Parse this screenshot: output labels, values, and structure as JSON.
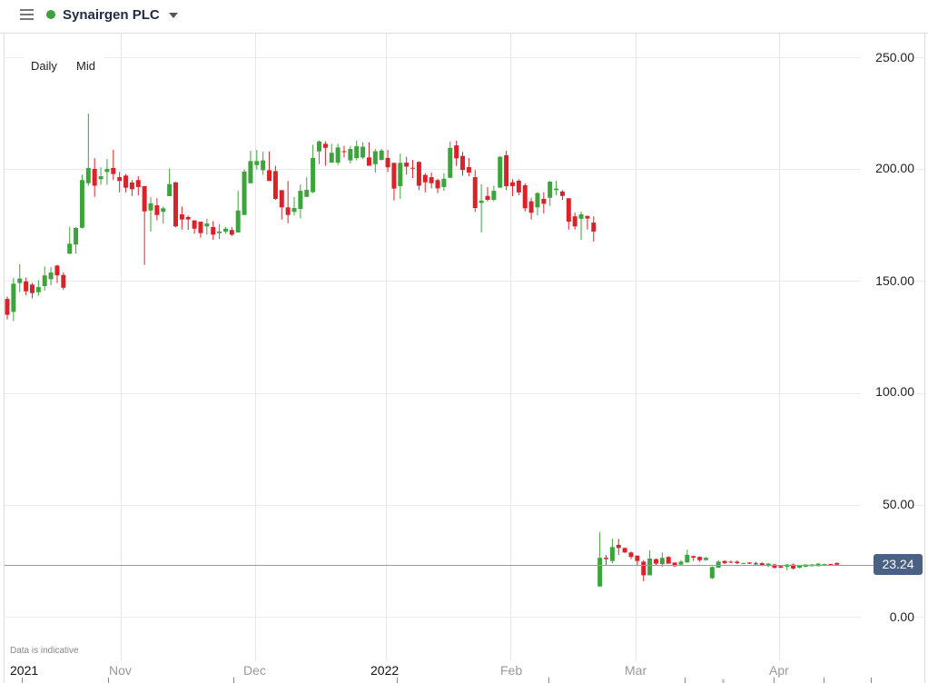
{
  "header": {
    "menu_icon": "hamburger-icon",
    "status_color": "#3da33d",
    "title": "Synairgen PLC",
    "dropdown_icon": "caret-down-icon"
  },
  "chart_controls": {
    "interval": "Daily",
    "price_type": "Mid"
  },
  "footer_note": "Data is indicative",
  "last_price": {
    "value": "23.24",
    "badge_color": "#4a6085"
  },
  "colors": {
    "up": "#3da33d",
    "down": "#d9232b",
    "neutral": "#333333"
  },
  "chart_data": {
    "type": "candlestick",
    "title": "Synairgen PLC",
    "xlabel": "",
    "ylabel": "",
    "ylim": [
      0,
      250
    ],
    "grid": true,
    "y_ticks": [
      "250.00",
      "200.00",
      "150.00",
      "100.00",
      "50.00",
      "0.00"
    ],
    "x_ticks": [
      {
        "label": "2021",
        "major": true
      },
      {
        "label": "Nov",
        "major": false
      },
      {
        "label": "Dec",
        "major": false
      },
      {
        "label": "2022",
        "major": true
      },
      {
        "label": "Feb",
        "major": false
      },
      {
        "label": "Mar",
        "major": false
      },
      {
        "label": "Apr",
        "major": false
      }
    ],
    "last_value": 23.24,
    "candle_fields": [
      "open",
      "high",
      "low",
      "close"
    ],
    "candles": [
      [
        142.0,
        143.0,
        132.8,
        134.9
      ],
      [
        136.2,
        151.4,
        132.2,
        148.8
      ],
      [
        149.1,
        157.5,
        145.0,
        151.1
      ],
      [
        149.8,
        151.5,
        143.7,
        145.4
      ],
      [
        148.4,
        149.1,
        142.3,
        144.6
      ],
      [
        145.0,
        150.4,
        143.4,
        147.3
      ],
      [
        147.7,
        156.5,
        145.7,
        152.5
      ],
      [
        150.8,
        156.2,
        148.1,
        153.8
      ],
      [
        156.9,
        157.2,
        149.1,
        152.5
      ],
      [
        152.7,
        153.8,
        146.1,
        147.0
      ],
      [
        162.2,
        174.1,
        162.0,
        166.7
      ],
      [
        166.3,
        174.1,
        162.2,
        173.7
      ],
      [
        173.8,
        197.5,
        173.4,
        195.1
      ],
      [
        193.7,
        224.8,
        192.5,
        200.5
      ],
      [
        200.1,
        204.9,
        187.6,
        192.6
      ],
      [
        195.5,
        200.8,
        193.0,
        196.8
      ],
      [
        198.7,
        204.5,
        193.0,
        200.1
      ],
      [
        200.5,
        208.6,
        195.1,
        197.8
      ],
      [
        196.4,
        198.7,
        189.6,
        194.7
      ],
      [
        197.1,
        197.8,
        189.6,
        191.7
      ],
      [
        194.0,
        195.1,
        188.0,
        191.0
      ],
      [
        195.1,
        196.8,
        188.3,
        192.0
      ],
      [
        192.4,
        192.4,
        157.2,
        181.1
      ],
      [
        181.5,
        187.4,
        172.1,
        184.7
      ],
      [
        183.8,
        187.0,
        177.1,
        179.5
      ],
      [
        180.9,
        183.3,
        175.7,
        182.5
      ],
      [
        187.9,
        200.2,
        187.9,
        193.3
      ],
      [
        194.1,
        194.3,
        174.0,
        174.4
      ],
      [
        179.8,
        183.3,
        173.0,
        177.5
      ],
      [
        178.6,
        179.3,
        172.8,
        177.5
      ],
      [
        177.1,
        177.1,
        171.1,
        173.4
      ],
      [
        176.5,
        176.5,
        169.4,
        171.4
      ],
      [
        174.4,
        177.8,
        170.7,
        175.7
      ],
      [
        174.1,
        176.8,
        168.4,
        170.7
      ],
      [
        171.4,
        175.4,
        168.7,
        172.1
      ],
      [
        172.1,
        174.1,
        171.1,
        173.4
      ],
      [
        172.8,
        174.1,
        170.0,
        170.7
      ],
      [
        171.7,
        190.3,
        171.7,
        181.5
      ],
      [
        179.5,
        199.8,
        179.5,
        198.9
      ],
      [
        193.7,
        208.2,
        193.7,
        203.6
      ],
      [
        201.8,
        208.6,
        199.8,
        203.6
      ],
      [
        199.5,
        207.7,
        197.4,
        203.9
      ],
      [
        199.5,
        207.9,
        194.7,
        194.7
      ],
      [
        199.1,
        201.4,
        186.3,
        186.7
      ],
      [
        190.6,
        190.6,
        177.5,
        182.9
      ],
      [
        182.9,
        194.7,
        175.8,
        179.5
      ],
      [
        180.9,
        187.6,
        179.3,
        182.6
      ],
      [
        182.2,
        193.1,
        178.0,
        190.3
      ],
      [
        187.6,
        196.4,
        187.6,
        190.7
      ],
      [
        189.7,
        210.9,
        189.3,
        205.0
      ],
      [
        207.9,
        212.7,
        202.2,
        212.4
      ],
      [
        211.3,
        212.4,
        201.5,
        209.5
      ],
      [
        202.9,
        211.3,
        202.9,
        207.3
      ],
      [
        202.9,
        211.3,
        201.8,
        209.7
      ],
      [
        208.0,
        210.4,
        205.2,
        207.7
      ],
      [
        203.9,
        210.4,
        202.5,
        209.0
      ],
      [
        204.9,
        212.7,
        203.9,
        210.2
      ],
      [
        205.2,
        212.0,
        204.5,
        210.0
      ],
      [
        205.2,
        212.0,
        201.5,
        201.5
      ],
      [
        202.2,
        209.0,
        198.5,
        208.0
      ],
      [
        204.1,
        209.0,
        203.9,
        208.3
      ],
      [
        205.0,
        208.6,
        198.7,
        200.8
      ],
      [
        202.8,
        202.8,
        186.0,
        191.3
      ],
      [
        192.4,
        206.9,
        186.7,
        202.8
      ],
      [
        202.9,
        205.5,
        197.5,
        201.1
      ],
      [
        200.6,
        204.1,
        196.0,
        200.2
      ],
      [
        203.2,
        203.5,
        190.6,
        192.6
      ],
      [
        197.4,
        198.2,
        189.6,
        194.1
      ],
      [
        196.4,
        198.5,
        191.4,
        193.7
      ],
      [
        195.1,
        195.7,
        189.3,
        191.4
      ],
      [
        192.0,
        198.2,
        190.3,
        195.7
      ],
      [
        196.1,
        212.4,
        196.1,
        209.5
      ],
      [
        210.6,
        212.7,
        201.4,
        204.8
      ],
      [
        205.9,
        207.7,
        197.1,
        199.6
      ],
      [
        200.9,
        204.9,
        196.8,
        198.5
      ],
      [
        196.4,
        199.6,
        180.9,
        182.6
      ],
      [
        184.9,
        193.3,
        171.7,
        185.9
      ],
      [
        188.0,
        192.0,
        185.6,
        186.3
      ],
      [
        186.3,
        192.6,
        185.6,
        190.3
      ],
      [
        191.7,
        205.9,
        191.7,
        205.5
      ],
      [
        206.2,
        208.2,
        190.6,
        192.4
      ],
      [
        194.1,
        195.5,
        187.9,
        192.4
      ],
      [
        194.8,
        195.5,
        188.3,
        189.6
      ],
      [
        192.8,
        193.7,
        181.1,
        182.5
      ],
      [
        185.6,
        187.2,
        177.5,
        180.5
      ],
      [
        182.9,
        189.7,
        179.3,
        189.3
      ],
      [
        186.7,
        189.7,
        180.2,
        184.5
      ],
      [
        187.2,
        194.7,
        183.6,
        194.4
      ],
      [
        190.6,
        194.8,
        188.3,
        191.3
      ],
      [
        190.0,
        190.6,
        186.3,
        188.0
      ],
      [
        187.0,
        187.0,
        173.0,
        176.5
      ],
      [
        178.9,
        180.6,
        173.0,
        174.4
      ],
      [
        177.8,
        181.1,
        168.4,
        179.8
      ],
      [
        179.1,
        179.1,
        173.0,
        177.9
      ],
      [
        176.1,
        178.9,
        167.6,
        172.1
      ],
      [
        13.5,
        37.7,
        13.5,
        26.3
      ],
      [
        26.3,
        27.6,
        23.0,
        25.7
      ],
      [
        24.9,
        34.8,
        23.9,
        31.1
      ],
      [
        32.1,
        34.8,
        27.6,
        30.7
      ],
      [
        30.7,
        30.9,
        28.5,
        28.7
      ],
      [
        28.7,
        29.1,
        25.7,
        26.7
      ],
      [
        27.3,
        27.3,
        22.6,
        24.9
      ],
      [
        24.6,
        25.3,
        15.8,
        18.5
      ],
      [
        18.5,
        29.7,
        18.5,
        26.0
      ],
      [
        25.7,
        26.0,
        23.0,
        23.7
      ],
      [
        23.5,
        28.7,
        22.2,
        26.3
      ],
      [
        26.7,
        27.1,
        23.7,
        23.7
      ],
      [
        24.2,
        24.2,
        22.2,
        22.6
      ],
      [
        23.3,
        25.3,
        23.0,
        24.6
      ],
      [
        24.2,
        30.0,
        24.2,
        27.6
      ],
      [
        27.1,
        27.3,
        24.9,
        26.4
      ],
      [
        26.7,
        26.9,
        24.6,
        25.3
      ],
      [
        25.3,
        26.7,
        25.0,
        26.3
      ],
      [
        17.2,
        22.6,
        16.8,
        22.2
      ],
      [
        21.9,
        25.3,
        21.9,
        24.6
      ],
      [
        24.9,
        25.3,
        23.5,
        23.9
      ],
      [
        24.6,
        25.0,
        23.9,
        24.2
      ],
      [
        24.6,
        25.1,
        23.5,
        23.9
      ],
      [
        23.7,
        24.1,
        23.5,
        24.0
      ],
      [
        24.2,
        24.4,
        23.5,
        23.7
      ],
      [
        23.8,
        24.5,
        23.3,
        23.8
      ],
      [
        23.9,
        24.3,
        22.6,
        22.9
      ],
      [
        22.6,
        24.0,
        22.2,
        23.7
      ],
      [
        23.3,
        23.7,
        21.5,
        21.9
      ],
      [
        22.6,
        22.8,
        21.7,
        21.9
      ],
      [
        22.3,
        23.5,
        20.8,
        23.3
      ],
      [
        23.3,
        23.8,
        21.1,
        21.5
      ],
      [
        21.9,
        23.1,
        21.7,
        23.0
      ],
      [
        22.3,
        23.5,
        22.1,
        23.3
      ],
      [
        22.6,
        23.5,
        22.4,
        23.3
      ],
      [
        22.6,
        23.9,
        22.4,
        23.7
      ],
      [
        23.1,
        23.7,
        22.9,
        23.5
      ],
      [
        23.5,
        23.7,
        22.9,
        23.1
      ],
      [
        24.0,
        24.2,
        23.1,
        23.24
      ]
    ]
  }
}
